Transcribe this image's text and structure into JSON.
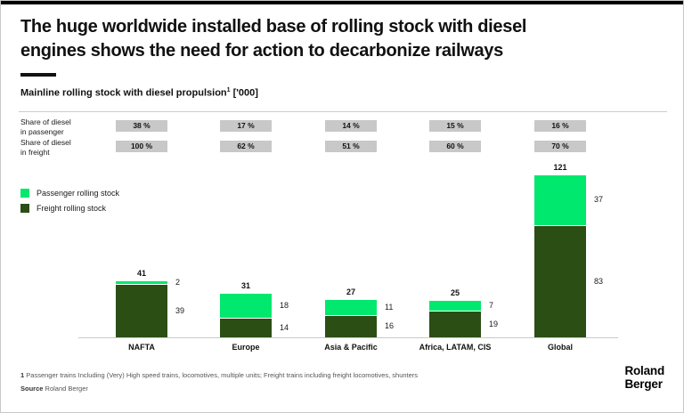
{
  "header": {
    "title_line1": "The huge worldwide installed base of rolling stock with diesel",
    "title_line2": "engines shows the need for action to decarbonize railways",
    "subtitle": "Mainline rolling stock with diesel propulsion",
    "subtitle_sup": "1",
    "subtitle_unit": " ['000]"
  },
  "share_rows": [
    {
      "label_line1": "Share of diesel",
      "label_line2": "in passenger",
      "values": [
        "38 %",
        "17 %",
        "14 %",
        "15 %",
        "16 %"
      ]
    },
    {
      "label_line1": "Share of diesel",
      "label_line2": "in freight",
      "values": [
        "100 %",
        "62 %",
        "51 %",
        "60 %",
        "70 %"
      ]
    }
  ],
  "legend": {
    "items": [
      {
        "label": "Passenger rolling stock",
        "color": "#00E86E"
      },
      {
        "label": "Freight rolling stock",
        "color": "#2B4E15"
      }
    ]
  },
  "chart_data": {
    "type": "bar",
    "stacked": true,
    "title": "Mainline rolling stock with diesel propulsion ['000]",
    "categories": [
      "NAFTA",
      "Europe",
      "Asia & Pacific",
      "Africa, LATAM, CIS",
      "Global"
    ],
    "series": [
      {
        "name": "Passenger rolling stock",
        "color": "#00E86E",
        "values": [
          2,
          18,
          11,
          7,
          37
        ]
      },
      {
        "name": "Freight rolling stock",
        "color": "#2B4E15",
        "values": [
          39,
          14,
          16,
          19,
          83
        ]
      }
    ],
    "totals": [
      41,
      31,
      27,
      25,
      121
    ],
    "share_of_diesel_in_passenger_pct": [
      38,
      17,
      14,
      15,
      16
    ],
    "share_of_diesel_in_freight_pct": [
      100,
      62,
      51,
      60,
      70
    ],
    "ylim": [
      0,
      125
    ],
    "grid": false,
    "legend_position": "left"
  },
  "footer": {
    "footnote_marker": "1",
    "footnote_text": "Passenger trains Including (Very) High speed trains, locomotives, multiple units; Freight trains including freight locomotives, shunters",
    "source_label": "Source",
    "source_value": " Roland Berger"
  },
  "logo": {
    "line1": "Roland",
    "line2": "Berger"
  },
  "colors": {
    "passenger_green": "#00E86E",
    "freight_green": "#2B4E15",
    "badge_gray": "#C8C8C8",
    "topbar_black": "#000000"
  }
}
